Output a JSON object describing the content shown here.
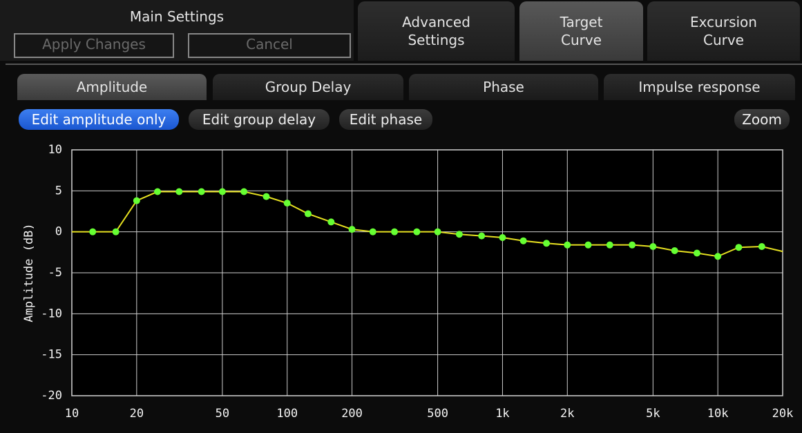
{
  "ui": {
    "main_settings": "Main Settings",
    "apply_changes": "Apply Changes",
    "cancel": "Cancel",
    "top_tabs": [
      [
        "Advanced",
        "Settings"
      ],
      [
        "Target",
        "Curve"
      ],
      [
        "Excursion",
        "Curve"
      ]
    ],
    "sub_tabs": [
      "Amplitude",
      "Group Delay",
      "Phase",
      "Impulse response"
    ],
    "edit_buttons": [
      "Edit amplitude only",
      "Edit group delay",
      "Edit phase"
    ],
    "zoom": "Zoom"
  },
  "chart_data": {
    "type": "line",
    "y_label": "Amplitude (dB)",
    "xlim": [
      10,
      20000
    ],
    "ylim": [
      -20,
      10
    ],
    "xscale": "log",
    "grid": true,
    "xticks": [
      10,
      20,
      50,
      100,
      200,
      500,
      {
        "value": 1000,
        "label": "1k"
      },
      {
        "value": 2000,
        "label": "2k"
      },
      {
        "value": 5000,
        "label": "5k"
      },
      {
        "value": 10000,
        "label": "10k"
      },
      {
        "value": 20000,
        "label": "20k"
      }
    ],
    "yticks": [
      -20,
      -15,
      -10,
      -5,
      0,
      5,
      10
    ],
    "series": [
      {
        "type": "line",
        "color": "#e6e020",
        "x": [
          10,
          12.5,
          16,
          20,
          25,
          31.5,
          40,
          50,
          63,
          80,
          100,
          125,
          160,
          200,
          250,
          315,
          400,
          500,
          630,
          800,
          1000,
          1250,
          1600,
          2000,
          2500,
          3150,
          4000,
          5000,
          6300,
          8000,
          10000,
          12500,
          16000,
          20000
        ],
        "values": [
          0,
          0,
          0,
          3.8,
          4.9,
          4.9,
          4.9,
          4.9,
          4.9,
          4.3,
          3.5,
          2.2,
          1.2,
          0.3,
          0,
          0,
          0,
          0,
          -0.3,
          -0.5,
          -0.7,
          -1.1,
          -1.4,
          -1.6,
          -1.6,
          -1.6,
          -1.6,
          -1.8,
          -2.3,
          -2.6,
          -3.0,
          -1.9,
          -1.8,
          -2.4
        ]
      },
      {
        "type": "scatter",
        "color": "#66ff33",
        "x": [
          12.5,
          16,
          20,
          25,
          31.5,
          40,
          50,
          63,
          80,
          100,
          125,
          160,
          200,
          250,
          315,
          400,
          500,
          630,
          800,
          1000,
          1250,
          1600,
          2000,
          2500,
          3150,
          4000,
          5000,
          6300,
          8000,
          10000,
          12500,
          16000
        ],
        "values": [
          0,
          0,
          3.8,
          4.9,
          4.9,
          4.9,
          4.9,
          4.9,
          4.3,
          3.5,
          2.2,
          1.2,
          0.3,
          0,
          0,
          0,
          0,
          -0.3,
          -0.5,
          -0.7,
          -1.1,
          -1.4,
          -1.6,
          -1.6,
          -1.6,
          -1.6,
          -1.8,
          -2.3,
          -2.6,
          -3.0,
          -1.9,
          -1.8
        ]
      }
    ]
  }
}
